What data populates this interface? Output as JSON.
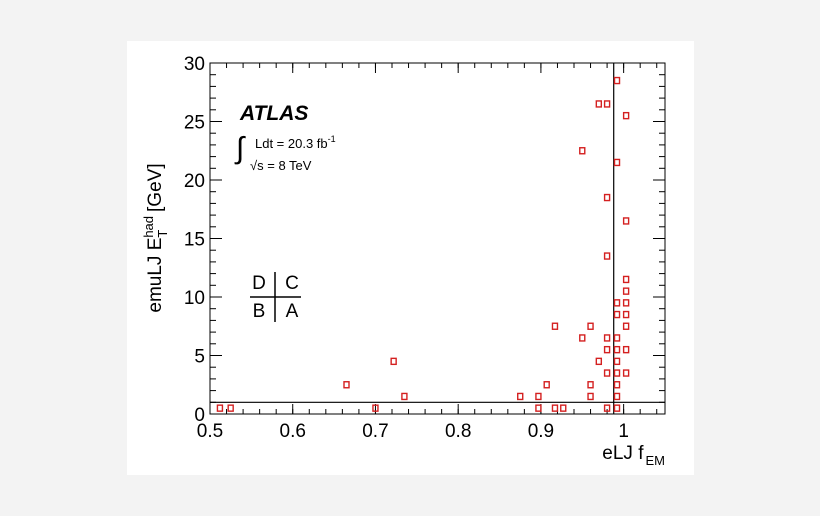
{
  "chart_data": {
    "type": "scatter",
    "xlabel": "eLJ f",
    "xlabel_sub": "EM",
    "ylabel_main": "emuLJ E",
    "ylabel_sub": "T",
    "ylabel_sup": "had",
    "ylabel_unit": "[GeV]",
    "xlim": [
      0.5,
      1.05
    ],
    "ylim": [
      0,
      30
    ],
    "xticks": [
      0.5,
      0.6,
      0.7,
      0.8,
      0.9,
      1.0
    ],
    "xtick_labels": [
      "0.5",
      "0.6",
      "0.7",
      "0.8",
      "0.9",
      "1"
    ],
    "yticks": [
      0,
      5,
      10,
      15,
      20,
      25,
      30
    ],
    "ytick_labels": [
      "0",
      "5",
      "10",
      "15",
      "20",
      "25",
      "30"
    ],
    "cut_x": 0.988,
    "cut_y": 1.0,
    "series": [
      {
        "name": "events",
        "color": "#d42020",
        "points": [
          {
            "x": 0.512,
            "y": 0.5
          },
          {
            "x": 0.525,
            "y": 0.5
          },
          {
            "x": 0.665,
            "y": 2.5
          },
          {
            "x": 0.7,
            "y": 0.5
          },
          {
            "x": 0.722,
            "y": 4.5
          },
          {
            "x": 0.735,
            "y": 1.5
          },
          {
            "x": 0.875,
            "y": 1.5
          },
          {
            "x": 0.897,
            "y": 1.5
          },
          {
            "x": 0.897,
            "y": 0.5
          },
          {
            "x": 0.907,
            "y": 2.5
          },
          {
            "x": 0.917,
            "y": 7.5
          },
          {
            "x": 0.917,
            "y": 0.5
          },
          {
            "x": 0.927,
            "y": 0.5
          },
          {
            "x": 0.95,
            "y": 22.5
          },
          {
            "x": 0.95,
            "y": 6.5
          },
          {
            "x": 0.96,
            "y": 7.5
          },
          {
            "x": 0.96,
            "y": 2.5
          },
          {
            "x": 0.96,
            "y": 1.5
          },
          {
            "x": 0.97,
            "y": 26.5
          },
          {
            "x": 0.97,
            "y": 4.5
          },
          {
            "x": 0.98,
            "y": 26.5
          },
          {
            "x": 0.98,
            "y": 18.5
          },
          {
            "x": 0.98,
            "y": 13.5
          },
          {
            "x": 0.98,
            "y": 6.5
          },
          {
            "x": 0.98,
            "y": 5.5
          },
          {
            "x": 0.98,
            "y": 3.5
          },
          {
            "x": 0.98,
            "y": 0.5
          },
          {
            "x": 0.992,
            "y": 28.5
          },
          {
            "x": 0.992,
            "y": 21.5
          },
          {
            "x": 0.992,
            "y": 9.5
          },
          {
            "x": 0.992,
            "y": 8.5
          },
          {
            "x": 0.992,
            "y": 6.5
          },
          {
            "x": 0.992,
            "y": 5.5
          },
          {
            "x": 0.992,
            "y": 4.5
          },
          {
            "x": 0.992,
            "y": 3.5
          },
          {
            "x": 0.992,
            "y": 2.5
          },
          {
            "x": 0.992,
            "y": 1.5
          },
          {
            "x": 0.992,
            "y": 0.5
          },
          {
            "x": 1.003,
            "y": 25.5
          },
          {
            "x": 1.003,
            "y": 16.5
          },
          {
            "x": 1.003,
            "y": 11.5
          },
          {
            "x": 1.003,
            "y": 10.5
          },
          {
            "x": 1.003,
            "y": 9.5
          },
          {
            "x": 1.003,
            "y": 8.5
          },
          {
            "x": 1.003,
            "y": 7.5
          },
          {
            "x": 1.003,
            "y": 5.5
          },
          {
            "x": 1.003,
            "y": 3.5
          }
        ]
      }
    ],
    "annotations": {
      "experiment": "ATLAS",
      "integral_sign": "∫",
      "lumi_text": "Ldt = 20.3 fb",
      "lumi_sup": "-1",
      "energy_text": "√s = 8 TeV",
      "region_top_left": "D",
      "region_top_right": "C",
      "region_bottom_left": "B",
      "region_bottom_right": "A"
    }
  }
}
